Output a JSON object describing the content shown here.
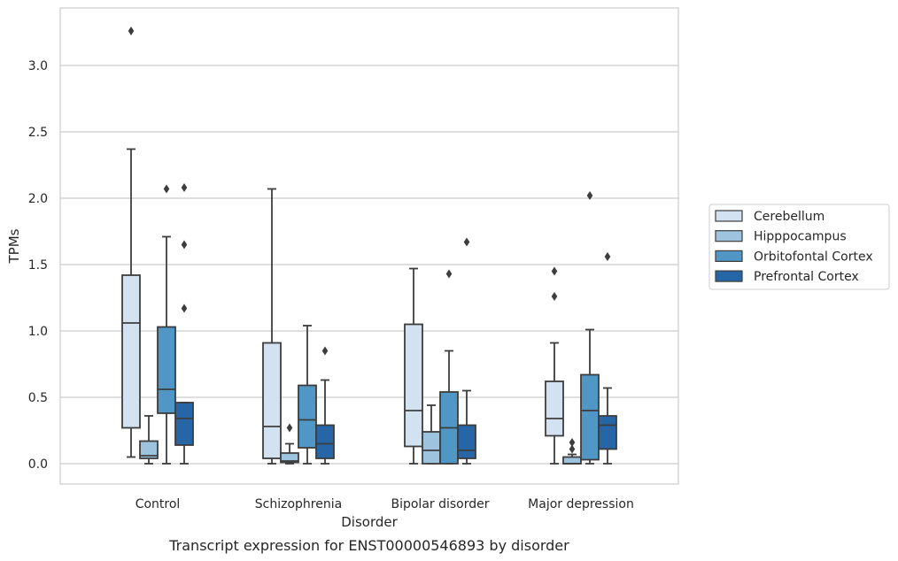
{
  "chart_data": {
    "type": "box",
    "title": "",
    "caption": "Transcript expression for ENST00000546893 by disorder",
    "xlabel": "Disorder",
    "ylabel": "TPMs",
    "ylim": [
      -0.16,
      3.43
    ],
    "yticks": [
      "0.0",
      "0.5",
      "1.0",
      "1.5",
      "2.0",
      "2.5",
      "3.0"
    ],
    "grid": "horizontal",
    "legend_position": "right",
    "categories": [
      "Control",
      "Schizophrenia",
      "Bipolar disorder",
      "Major depression"
    ],
    "series": [
      {
        "name": "Cerebellum",
        "color": "#d2e2f1",
        "boxes": [
          {
            "whislo": 0.05,
            "q1": 0.27,
            "med": 1.06,
            "q3": 1.42,
            "whishi": 2.37,
            "fliers": [
              3.26
            ]
          },
          {
            "whislo": 0.0,
            "q1": 0.04,
            "med": 0.28,
            "q3": 0.91,
            "whishi": 2.07,
            "fliers": []
          },
          {
            "whislo": 0.0,
            "q1": 0.13,
            "med": 0.4,
            "q3": 1.05,
            "whishi": 1.47,
            "fliers": []
          },
          {
            "whislo": 0.0,
            "q1": 0.21,
            "med": 0.34,
            "q3": 0.62,
            "whishi": 0.91,
            "fliers": [
              1.26,
              1.45
            ]
          }
        ]
      },
      {
        "name": "Hipppocampus",
        "color": "#9dc3df",
        "boxes": [
          {
            "whislo": 0.0,
            "q1": 0.04,
            "med": 0.06,
            "q3": 0.17,
            "whishi": 0.36,
            "fliers": []
          },
          {
            "whislo": 0.0,
            "q1": 0.01,
            "med": 0.02,
            "q3": 0.08,
            "whishi": 0.15,
            "fliers": [
              0.27
            ]
          },
          {
            "whislo": 0.0,
            "q1": 0.0,
            "med": 0.1,
            "q3": 0.24,
            "whishi": 0.44,
            "fliers": []
          },
          {
            "whislo": 0.0,
            "q1": 0.0,
            "med": 0.0,
            "q3": 0.05,
            "whishi": 0.07,
            "fliers": [
              0.11,
              0.16
            ]
          }
        ]
      },
      {
        "name": "Orbitofontal Cortex",
        "color": "#5097c5",
        "boxes": [
          {
            "whislo": 0.0,
            "q1": 0.38,
            "med": 0.56,
            "q3": 1.03,
            "whishi": 1.71,
            "fliers": [
              2.07
            ]
          },
          {
            "whislo": 0.0,
            "q1": 0.12,
            "med": 0.33,
            "q3": 0.59,
            "whishi": 1.04,
            "fliers": []
          },
          {
            "whislo": 0.0,
            "q1": 0.0,
            "med": 0.27,
            "q3": 0.54,
            "whishi": 0.85,
            "fliers": [
              1.43
            ]
          },
          {
            "whislo": 0.0,
            "q1": 0.03,
            "med": 0.4,
            "q3": 0.67,
            "whishi": 1.01,
            "fliers": [
              2.02
            ]
          }
        ]
      },
      {
        "name": "Prefrontal Cortex",
        "color": "#2666a6",
        "boxes": [
          {
            "whislo": 0.0,
            "q1": 0.14,
            "med": 0.34,
            "q3": 0.46,
            "whishi": 0.46,
            "fliers": [
              1.17,
              1.65,
              2.08
            ]
          },
          {
            "whislo": 0.0,
            "q1": 0.04,
            "med": 0.15,
            "q3": 0.29,
            "whishi": 0.63,
            "fliers": [
              0.85
            ]
          },
          {
            "whislo": 0.0,
            "q1": 0.04,
            "med": 0.1,
            "q3": 0.29,
            "whishi": 0.55,
            "fliers": [
              1.67
            ]
          },
          {
            "whislo": 0.0,
            "q1": 0.11,
            "med": 0.29,
            "q3": 0.36,
            "whishi": 0.57,
            "fliers": [
              1.56
            ]
          }
        ]
      }
    ]
  }
}
